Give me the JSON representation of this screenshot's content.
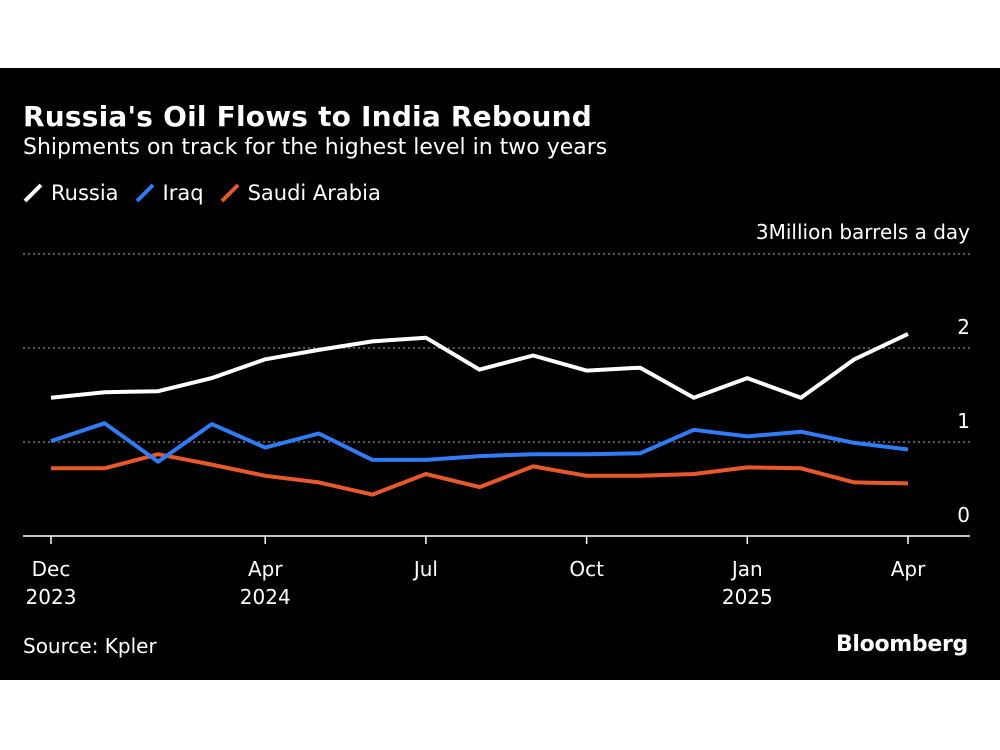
{
  "header": {
    "title": "Russia's Oil Flows to India Rebound",
    "subtitle": "Shipments on track for the highest level in two years"
  },
  "legend": [
    {
      "label": "Russia",
      "color": "#ffffff"
    },
    {
      "label": "Iraq",
      "color": "#2f7cf6"
    },
    {
      "label": "Saudi Arabia",
      "color": "#e8582a"
    }
  ],
  "footer": {
    "source": "Source: Kpler",
    "brand": "Bloomberg"
  },
  "chart_data": {
    "type": "line",
    "title": "Russia's Oil Flows to India Rebound",
    "subtitle": "Shipments on track for the highest level in two years",
    "ylabel": "Million barrels a day",
    "ylim": [
      0,
      3
    ],
    "yticks": [
      0,
      1,
      2,
      3
    ],
    "grid": true,
    "legend_position": "top-left",
    "x": [
      "2023-12",
      "2024-01",
      "2024-02",
      "2024-03",
      "2024-04",
      "2024-05",
      "2024-06",
      "2024-07",
      "2024-08",
      "2024-09",
      "2024-10",
      "2024-11",
      "2024-12",
      "2025-01",
      "2025-02",
      "2025-03",
      "2025-04"
    ],
    "xticks": [
      {
        "x": "2023-12",
        "line1": "Dec",
        "line2": "2023"
      },
      {
        "x": "2024-04",
        "line1": "Apr",
        "line2": "2024"
      },
      {
        "x": "2024-07",
        "line1": "Jul",
        "line2": ""
      },
      {
        "x": "2024-10",
        "line1": "Oct",
        "line2": ""
      },
      {
        "x": "2025-01",
        "line1": "Jan",
        "line2": "2025"
      },
      {
        "x": "2025-04",
        "line1": "Apr",
        "line2": ""
      }
    ],
    "series": [
      {
        "name": "Russia",
        "color": "#ffffff",
        "values": [
          1.47,
          1.53,
          1.54,
          1.68,
          1.88,
          1.98,
          2.07,
          2.11,
          1.77,
          1.92,
          1.76,
          1.79,
          1.47,
          1.68,
          1.47,
          1.88,
          2.15
        ]
      },
      {
        "name": "Iraq",
        "color": "#2f7cf6",
        "values": [
          1.01,
          1.2,
          0.79,
          1.19,
          0.94,
          1.09,
          0.81,
          0.81,
          0.85,
          0.87,
          0.87,
          0.88,
          1.13,
          1.06,
          1.11,
          0.99,
          0.92
        ]
      },
      {
        "name": "Saudi Arabia",
        "color": "#e8582a",
        "values": [
          0.72,
          0.72,
          0.87,
          0.76,
          0.64,
          0.57,
          0.44,
          0.66,
          0.52,
          0.74,
          0.64,
          0.64,
          0.66,
          0.73,
          0.72,
          0.57,
          0.56
        ]
      }
    ]
  }
}
